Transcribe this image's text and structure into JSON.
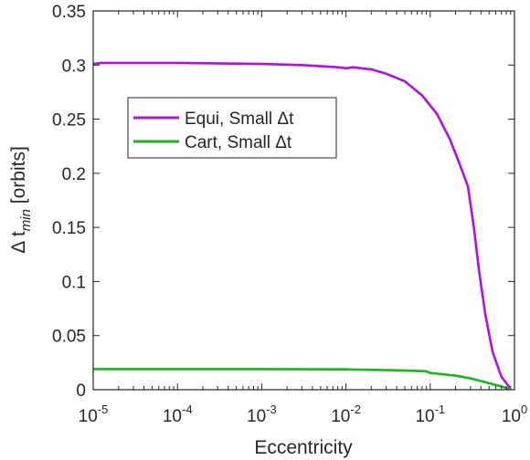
{
  "chart_data": {
    "type": "line",
    "xlabel": "Eccentricity",
    "ylabel": {
      "prefix": "Δ t",
      "subscript": "min",
      "suffix": " [orbits]"
    },
    "xscale": "log",
    "xlim": [
      1e-05,
      1
    ],
    "ylim": [
      0,
      0.35
    ],
    "x_ticks": [
      {
        "base": "10",
        "exp": "-5",
        "value": 1e-05
      },
      {
        "base": "10",
        "exp": "-4",
        "value": 0.0001
      },
      {
        "base": "10",
        "exp": "-3",
        "value": 0.001
      },
      {
        "base": "10",
        "exp": "-2",
        "value": 0.01
      },
      {
        "base": "10",
        "exp": "-1",
        "value": 0.1
      },
      {
        "base": "10",
        "exp": "0",
        "value": 1
      }
    ],
    "y_ticks": [
      {
        "label": "0",
        "value": 0
      },
      {
        "label": "0.05",
        "value": 0.05
      },
      {
        "label": "0.1",
        "value": 0.1
      },
      {
        "label": "0.15",
        "value": 0.15
      },
      {
        "label": "0.2",
        "value": 0.2
      },
      {
        "label": "0.25",
        "value": 0.25
      },
      {
        "label": "0.3",
        "value": 0.3
      },
      {
        "label": "0.35",
        "value": 0.35
      }
    ],
    "grid": false,
    "legend_placement": "center-left",
    "series": [
      {
        "name": "Equi, Small Δt",
        "color": "#b30ee6",
        "points": [
          [
            1e-05,
            0.301
          ],
          [
            1.25e-05,
            0.302
          ],
          [
            0.0001,
            0.302
          ],
          [
            0.001,
            0.301
          ],
          [
            0.003,
            0.3
          ],
          [
            0.008,
            0.298
          ],
          [
            0.01,
            0.297
          ],
          [
            0.012,
            0.298
          ],
          [
            0.02,
            0.296
          ],
          [
            0.03,
            0.292
          ],
          [
            0.05,
            0.285
          ],
          [
            0.08,
            0.272
          ],
          [
            0.12,
            0.255
          ],
          [
            0.17,
            0.232
          ],
          [
            0.22,
            0.21
          ],
          [
            0.28,
            0.188
          ],
          [
            0.33,
            0.15
          ],
          [
            0.38,
            0.11
          ],
          [
            0.45,
            0.07
          ],
          [
            0.55,
            0.035
          ],
          [
            0.7,
            0.012
          ],
          [
            0.88,
            0.002
          ]
        ]
      },
      {
        "name": "Cart, Small Δt",
        "color": "#17b717",
        "points": [
          [
            1e-05,
            0.019
          ],
          [
            0.0001,
            0.019
          ],
          [
            0.001,
            0.019
          ],
          [
            0.01,
            0.0188
          ],
          [
            0.05,
            0.0178
          ],
          [
            0.09,
            0.017
          ],
          [
            0.1,
            0.0155
          ],
          [
            0.2,
            0.013
          ],
          [
            0.3,
            0.0105
          ],
          [
            0.5,
            0.006
          ],
          [
            0.7,
            0.003
          ],
          [
            0.88,
            0.0005
          ]
        ]
      }
    ]
  }
}
